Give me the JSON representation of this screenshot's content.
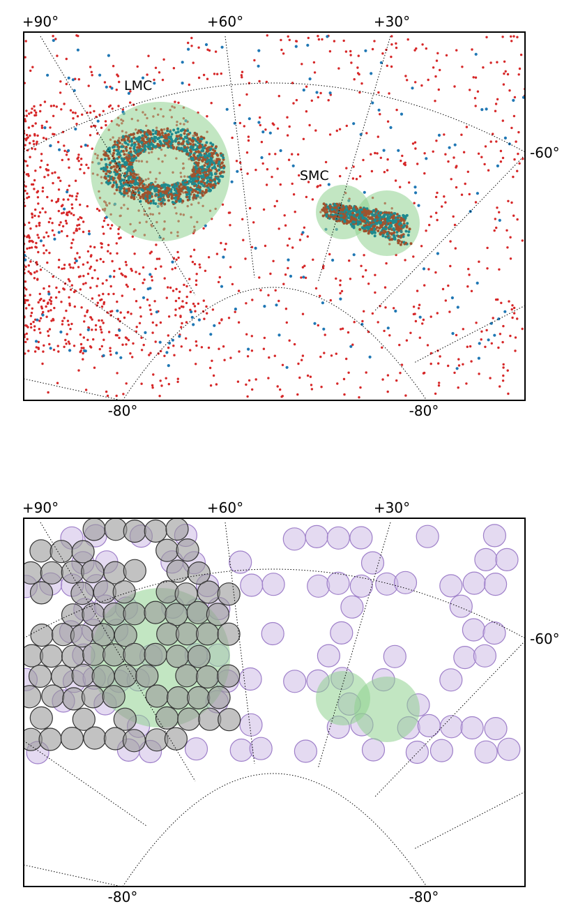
{
  "chart_data": [
    {
      "type": "scatter",
      "projection": "polar stereographic (south celestial pole region)",
      "top_tick_labels": [
        "+90°",
        "+60°",
        "+30°"
      ],
      "right_tick_labels": [
        "-60°"
      ],
      "bottom_tick_labels": [
        "-80°",
        "-80°"
      ],
      "annotations": [
        "LMC",
        "SMC"
      ],
      "regions": [
        {
          "label": "LMC",
          "ra_deg": 80.9,
          "dec_deg": -69.8,
          "color": "#8fd18f"
        },
        {
          "label": "SMC",
          "ra_deg": 13.2,
          "dec_deg": -72.8,
          "color": "#8fd18f"
        }
      ],
      "series_colors": {
        "red_points": "#d62728",
        "blue_points": "#1f77b4",
        "dense_overlap": "#a0522d"
      },
      "grid": "on (dotted RA/Dec lines)",
      "legend": "none"
    },
    {
      "type": "scatter",
      "projection": "polar stereographic (south celestial pole region)",
      "top_tick_labels": [
        "+90°",
        "+60°",
        "+30°"
      ],
      "right_tick_labels": [
        "-60°"
      ],
      "bottom_tick_labels": [
        "-80°",
        "-80°"
      ],
      "marker": "circular survey fields",
      "series_colors": {
        "gray_fields": "#555555",
        "purple_fields": "#9e7fc9",
        "regions": "#8fd18f"
      },
      "grid": "on (dotted RA/Dec lines)",
      "legend": "none"
    }
  ]
}
